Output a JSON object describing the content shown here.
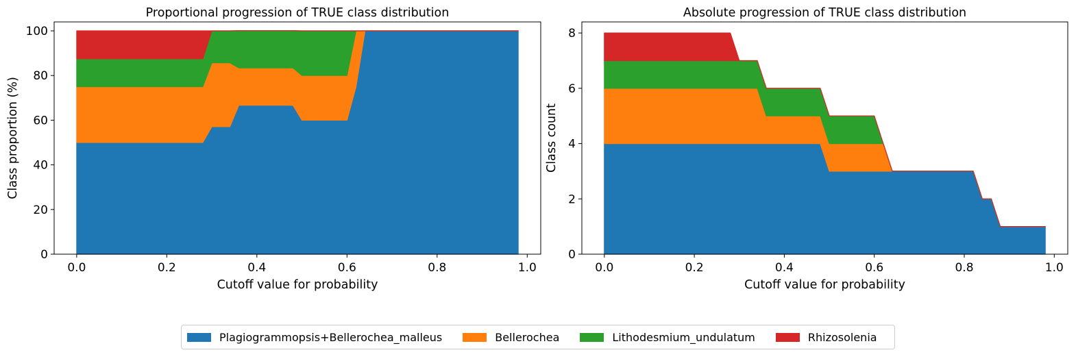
{
  "colors": [
    "#1f77b4",
    "#ff7f0e",
    "#2ca02c",
    "#d62728"
  ],
  "legend": {
    "items": [
      {
        "label": "Plagiogrammopsis+Bellerochea_malleus",
        "color": "#1f77b4"
      },
      {
        "label": "Bellerochea",
        "color": "#ff7f0e"
      },
      {
        "label": "Lithodesmium_undulatum",
        "color": "#2ca02c"
      },
      {
        "label": "Rhizosolenia",
        "color": "#d62728"
      }
    ],
    "placement": "bottom-center"
  },
  "chart_data": [
    {
      "type": "area",
      "stacked": true,
      "title": "Proportional progression of TRUE class distribution",
      "xlabel": "Cutoff value for probability",
      "ylabel": "Class proportion (%)",
      "xlim": [
        -0.05,
        1.03
      ],
      "ylim": [
        0,
        104
      ],
      "xticks": [
        "0.0",
        "0.2",
        "0.4",
        "0.6",
        "0.8",
        "1.0"
      ],
      "yticks": [
        "0",
        "20",
        "40",
        "60",
        "80",
        "100"
      ],
      "grid": false,
      "x": [
        0,
        0.28,
        0.3,
        0.34,
        0.36,
        0.48,
        0.5,
        0.6,
        0.62,
        0.64,
        0.98
      ],
      "series": [
        {
          "name": "Plagiogrammopsis+Bellerochea_malleus",
          "values": [
            50,
            50,
            57.1,
            57.1,
            66.7,
            66.7,
            60,
            60,
            75,
            100,
            100
          ]
        },
        {
          "name": "Bellerochea",
          "values": [
            25,
            25,
            28.6,
            28.6,
            16.7,
            16.7,
            20,
            20,
            25,
            0,
            0
          ]
        },
        {
          "name": "Lithodesmium_undulatum",
          "values": [
            12.5,
            12.5,
            14.3,
            14.3,
            16.7,
            16.7,
            20,
            20,
            0,
            0,
            0
          ]
        },
        {
          "name": "Rhizosolenia",
          "values": [
            12.5,
            12.5,
            0,
            0,
            0,
            0,
            0,
            0,
            0,
            0,
            0
          ]
        }
      ]
    },
    {
      "type": "area",
      "stacked": true,
      "title": "Absolute progression of TRUE class distribution",
      "xlabel": "Cutoff value for probability",
      "ylabel": "Class count",
      "xlim": [
        -0.05,
        1.03
      ],
      "ylim": [
        0,
        8.4
      ],
      "xticks": [
        "0.0",
        "0.2",
        "0.4",
        "0.6",
        "0.8",
        "1.0"
      ],
      "yticks": [
        "0",
        "2",
        "4",
        "6",
        "8"
      ],
      "grid": false,
      "x": [
        0,
        0.28,
        0.3,
        0.34,
        0.36,
        0.48,
        0.5,
        0.6,
        0.62,
        0.64,
        0.82,
        0.84,
        0.86,
        0.88,
        0.98
      ],
      "series": [
        {
          "name": "Plagiogrammopsis+Bellerochea_malleus",
          "values": [
            4,
            4,
            4,
            4,
            4,
            4,
            3,
            3,
            3,
            3,
            3,
            2,
            2,
            1,
            1
          ]
        },
        {
          "name": "Bellerochea",
          "values": [
            2,
            2,
            2,
            2,
            1,
            1,
            1,
            1,
            1,
            0,
            0,
            0,
            0,
            0,
            0
          ]
        },
        {
          "name": "Lithodesmium_undulatum",
          "values": [
            1,
            1,
            1,
            1,
            1,
            1,
            1,
            1,
            0,
            0,
            0,
            0,
            0,
            0,
            0
          ]
        },
        {
          "name": "Rhizosolenia",
          "values": [
            1,
            1,
            0,
            0,
            0,
            0,
            0,
            0,
            0,
            0,
            0,
            0,
            0,
            0,
            0
          ]
        }
      ]
    }
  ]
}
